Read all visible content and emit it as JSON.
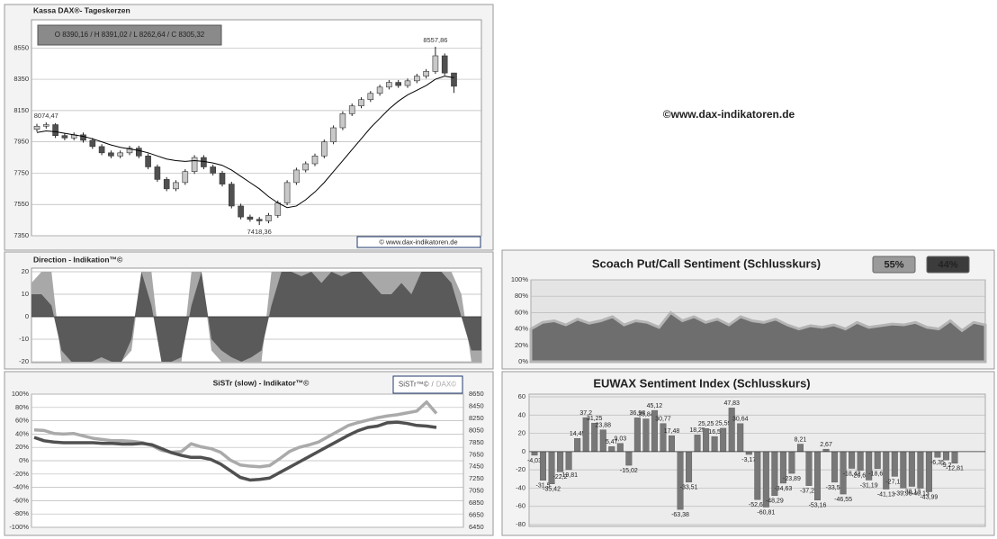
{
  "chart_data": [
    {
      "type": "candlestick",
      "title": "Kassa DAX®- Tageskerzen",
      "subtitle": "O 8390,16 / H 8391,02 / L 8262,64 / C 8305,32",
      "source": "© www.dax-indikatoren.de",
      "watermark": "©www.dax-indikatoren.de",
      "open": [
        8030,
        8050,
        8060,
        7990,
        7975,
        7995,
        7960,
        7920,
        7880,
        7860,
        7880,
        7910,
        7860,
        7790,
        7710,
        7650,
        7690,
        7760,
        7850,
        7790,
        7750,
        7680,
        7540,
        7470,
        7455,
        7445,
        7480,
        7560,
        7690,
        7770,
        7810,
        7860,
        7950,
        8040,
        8130,
        8180,
        8220,
        8260,
        8300,
        8330,
        8310,
        8340,
        8370,
        8400,
        8500,
        8390.16
      ],
      "high": [
        8065,
        8074.47,
        8070,
        8005,
        8010,
        8010,
        7975,
        7935,
        7895,
        7895,
        7925,
        7925,
        7875,
        7805,
        7725,
        7705,
        7775,
        7865,
        7865,
        7805,
        7765,
        7695,
        7555,
        7485,
        7470,
        7495,
        7575,
        7705,
        7785,
        7825,
        7875,
        7965,
        8055,
        8145,
        8195,
        8235,
        8275,
        8315,
        8345,
        8345,
        8355,
        8385,
        8415,
        8557.86,
        8515,
        8391.02
      ],
      "low": [
        8015,
        8035,
        7975,
        7960,
        7960,
        7945,
        7905,
        7865,
        7845,
        7845,
        7865,
        7845,
        7775,
        7695,
        7635,
        7635,
        7675,
        7745,
        7775,
        7735,
        7665,
        7525,
        7455,
        7440,
        7418.36,
        7430,
        7465,
        7545,
        7675,
        7755,
        7795,
        7845,
        7935,
        8025,
        8115,
        8165,
        8205,
        8245,
        8285,
        8295,
        8295,
        8325,
        8355,
        8385,
        8375,
        8262.64
      ],
      "close": [
        8050,
        8060,
        7990,
        7975,
        7995,
        7960,
        7920,
        7880,
        7860,
        7880,
        7910,
        7860,
        7790,
        7710,
        7650,
        7690,
        7760,
        7850,
        7790,
        7750,
        7680,
        7540,
        7470,
        7455,
        7445,
        7480,
        7560,
        7690,
        7770,
        7810,
        7860,
        7950,
        8040,
        8130,
        8180,
        8220,
        8260,
        8300,
        8330,
        8310,
        8340,
        8370,
        8400,
        8500,
        8390,
        8305.32
      ],
      "ma": [
        8010,
        8020,
        8015,
        8005,
        7995,
        7985,
        7970,
        7950,
        7930,
        7915,
        7905,
        7895,
        7880,
        7860,
        7840,
        7830,
        7825,
        7830,
        7825,
        7815,
        7800,
        7770,
        7730,
        7690,
        7650,
        7600,
        7560,
        7530,
        7540,
        7580,
        7630,
        7690,
        7760,
        7830,
        7900,
        7970,
        8040,
        8100,
        8160,
        8210,
        8250,
        8280,
        8310,
        8350,
        8370,
        8360
      ],
      "high_labels": [
        null,
        "8074,47",
        null,
        null,
        null,
        null,
        null,
        null,
        null,
        null,
        null,
        null,
        null,
        null,
        null,
        null,
        null,
        null,
        null,
        null,
        null,
        null,
        null,
        null,
        null,
        null,
        null,
        null,
        null,
        null,
        null,
        null,
        null,
        null,
        null,
        null,
        null,
        null,
        null,
        null,
        null,
        null,
        null,
        "8557,86",
        null,
        null
      ],
      "low_labels": [
        null,
        null,
        null,
        null,
        null,
        null,
        null,
        null,
        null,
        null,
        null,
        null,
        null,
        null,
        null,
        null,
        null,
        null,
        null,
        null,
        null,
        null,
        null,
        null,
        "7418,36",
        null,
        null,
        null,
        null,
        null,
        null,
        null,
        null,
        null,
        null,
        null,
        null,
        null,
        null,
        null,
        null,
        null,
        null,
        null,
        null,
        null
      ],
      "up_color": "#c8c8c8",
      "down_color": "#505050",
      "ma_color": "#000000",
      "ylim": [
        7350,
        8730
      ],
      "yticks": [
        7350,
        7550,
        7750,
        7950,
        8150,
        8350,
        8550
      ],
      "grid": true
    },
    {
      "type": "area",
      "title": "Direction - Indikation™©",
      "series": [
        {
          "color": "#a8a8a8",
          "values": [
            15,
            20,
            20,
            -20,
            -20,
            -20,
            -20,
            -20,
            -20,
            -20,
            -15,
            20,
            20,
            -20,
            -20,
            -20,
            20,
            20,
            -15,
            -20,
            -20,
            -20,
            -20,
            -20,
            20,
            20,
            20,
            20,
            20,
            20,
            20,
            20,
            20,
            20,
            20,
            20,
            20,
            20,
            20,
            20,
            20,
            20,
            20,
            10,
            -20,
            -20
          ]
        },
        {
          "color": "#5a5a5a",
          "values": [
            10,
            10,
            5,
            -15,
            -20,
            -20,
            -20,
            -18,
            -20,
            -20,
            -10,
            20,
            5,
            -20,
            -20,
            -18,
            5,
            20,
            -10,
            -15,
            -18,
            -20,
            -18,
            -15,
            5,
            20,
            20,
            18,
            20,
            15,
            20,
            18,
            20,
            20,
            15,
            10,
            10,
            15,
            10,
            20,
            20,
            20,
            15,
            0,
            -15,
            -15
          ]
        }
      ],
      "ylim": [
        -20,
        20
      ],
      "yticks": [
        -20,
        -10,
        0,
        10,
        20
      ]
    },
    {
      "type": "line",
      "title": "SiSTr (slow) - Indikator™©",
      "legend_separator": "/",
      "series": [
        {
          "name": "SiSTr™©",
          "color": "#505050",
          "values": [
            35,
            30,
            28,
            27,
            27,
            27,
            27,
            26,
            26,
            25,
            25,
            26,
            24,
            18,
            12,
            8,
            5,
            5,
            2,
            -5,
            -15,
            -25,
            -29,
            -28,
            -26,
            -18,
            -10,
            -2,
            6,
            14,
            22,
            30,
            38,
            45,
            50,
            52,
            57,
            58,
            56,
            53,
            52,
            50
          ]
        },
        {
          "name": "DAX©",
          "color": "#aaaaaa",
          "axis": "y2",
          "values": [
            8060,
            8050,
            8000,
            7990,
            8000,
            7960,
            7920,
            7900,
            7880,
            7880,
            7870,
            7850,
            7800,
            7720,
            7690,
            7700,
            7830,
            7780,
            7750,
            7690,
            7560,
            7480,
            7460,
            7450,
            7470,
            7580,
            7700,
            7770,
            7810,
            7860,
            7950,
            8040,
            8130,
            8180,
            8220,
            8260,
            8290,
            8310,
            8340,
            8370,
            8520,
            8330
          ]
        }
      ],
      "ylim": [
        -100,
        100
      ],
      "yticks": [
        {
          "value": -100,
          "label": "-100%"
        },
        {
          "value": -80,
          "label": "-80%"
        },
        {
          "value": -60,
          "label": "-60%"
        },
        {
          "value": -40,
          "label": "-40%"
        },
        {
          "value": -20,
          "label": "-20%"
        },
        {
          "value": 0,
          "label": "0%"
        },
        {
          "value": 20,
          "label": "20%"
        },
        {
          "value": 40,
          "label": "40%"
        },
        {
          "value": 60,
          "label": "60%"
        },
        {
          "value": 80,
          "label": "80%"
        },
        {
          "value": 100,
          "label": "100%"
        }
      ],
      "y2lim": [
        6450,
        8650
      ],
      "y2ticks": [
        6450,
        6650,
        6850,
        7050,
        7250,
        7450,
        7650,
        7850,
        8050,
        8250,
        8450,
        8650
      ]
    },
    {
      "type": "area",
      "title": "Scoach Put/Call Sentiment (Schlusskurs)",
      "values": [
        40,
        48,
        50,
        45,
        52,
        47,
        50,
        55,
        45,
        50,
        48,
        42,
        60,
        50,
        55,
        48,
        52,
        45,
        55,
        50,
        48,
        52,
        45,
        40,
        44,
        42,
        45,
        40,
        48,
        42,
        44,
        46,
        45,
        48,
        42,
        40,
        50,
        38,
        48,
        45
      ],
      "color": "#6e6e6e",
      "indicators": [
        {
          "value": 55,
          "label": "55%",
          "color": "#9a9a9a"
        },
        {
          "value": 44,
          "label": "44%",
          "color": "#3c3c3c"
        }
      ],
      "ylim": [
        0,
        100
      ],
      "yticks": [
        {
          "value": 0,
          "label": "0%"
        },
        {
          "value": 20,
          "label": "20%"
        },
        {
          "value": 40,
          "label": "40%"
        },
        {
          "value": 60,
          "label": "60%"
        },
        {
          "value": 80,
          "label": "80%"
        },
        {
          "value": 100,
          "label": "100%"
        }
      ]
    },
    {
      "type": "bar",
      "title": "EUWAX Sentiment Index (Schlusskurs)",
      "values": [
        -4.03,
        -31.5,
        -35.42,
        -22.2,
        -19.81,
        14.45,
        37.2,
        31.25,
        23.88,
        5.47,
        9.03,
        -15.02,
        36.98,
        35.84,
        45.12,
        30.77,
        17.48,
        -63.38,
        -33.51,
        18.25,
        25.25,
        16.5,
        25.59,
        47.83,
        30.64,
        -3.17,
        -52.63,
        -60.81,
        -48.29,
        -34.63,
        -23.89,
        8.21,
        -37.27,
        -53.16,
        2.67,
        -33.57,
        -46.55,
        -18.42,
        -20.69,
        -31.19,
        -18.62,
        -41.13,
        -27.18,
        -39.98,
        -38.13,
        -40.13,
        -43.99,
        -6.35,
        -9.2,
        -12.81
      ],
      "value_labels": [
        "-4,03",
        "-31,5",
        "-35,42",
        "-22,2",
        "-19,81",
        "14,45",
        "37,2",
        "31,25",
        "23,88",
        "5,47",
        "9,03",
        "-15,02",
        "36,98",
        "35,84",
        "45,12",
        "30,77",
        "17,48",
        "-63,38",
        "-33,51",
        "18,25",
        "25,25",
        "16,5",
        "25,59",
        "47,83",
        "30,64",
        "-3,17",
        "-52,63",
        "-60,81",
        "-48,29",
        "-34,63",
        "-23,89",
        "8,21",
        "-37,27",
        "-53,16",
        "2,67",
        "-33,57",
        "-46,55",
        "-18,42",
        "-20,69",
        "-31,19",
        "-18,62",
        "-41,13",
        "-27,18",
        "-39,98",
        "-38,13",
        "-40,13",
        "-43,99",
        "-6,35",
        "-9,2",
        "-12,81"
      ],
      "color": "#787878",
      "ylim": [
        -80,
        60
      ],
      "yticks": [
        -80,
        -60,
        -40,
        -20,
        0,
        20,
        40,
        60
      ]
    }
  ]
}
